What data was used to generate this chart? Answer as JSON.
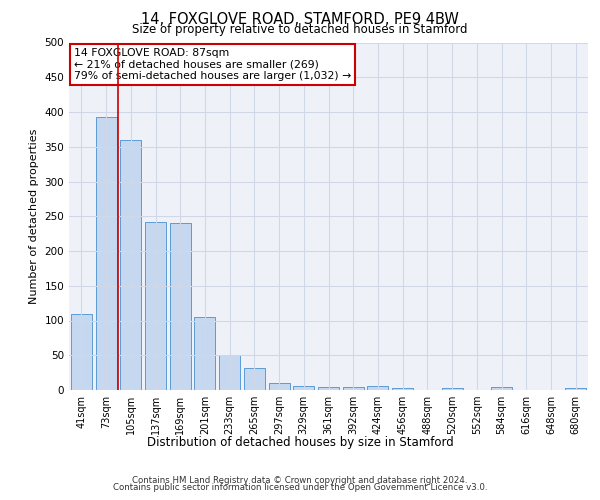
{
  "title": "14, FOXGLOVE ROAD, STAMFORD, PE9 4BW",
  "subtitle": "Size of property relative to detached houses in Stamford",
  "xlabel": "Distribution of detached houses by size in Stamford",
  "ylabel": "Number of detached properties",
  "bar_labels": [
    "41sqm",
    "73sqm",
    "105sqm",
    "137sqm",
    "169sqm",
    "201sqm",
    "233sqm",
    "265sqm",
    "297sqm",
    "329sqm",
    "361sqm",
    "392sqm",
    "424sqm",
    "456sqm",
    "488sqm",
    "520sqm",
    "552sqm",
    "584sqm",
    "616sqm",
    "648sqm",
    "680sqm"
  ],
  "bar_values": [
    110,
    393,
    360,
    242,
    241,
    105,
    50,
    31,
    10,
    6,
    4,
    4,
    6,
    3,
    0,
    3,
    0,
    5,
    0,
    0,
    3
  ],
  "bar_color": "#c5d8f0",
  "bar_edge_color": "#5b9bd5",
  "vline_x": 1.5,
  "vline_color": "#cc0000",
  "annotation_text": "14 FOXGLOVE ROAD: 87sqm\n← 21% of detached houses are smaller (269)\n79% of semi-detached houses are larger (1,032) →",
  "annotation_box_color": "#ffffff",
  "annotation_box_edge": "#cc0000",
  "ylim": [
    0,
    500
  ],
  "yticks": [
    0,
    50,
    100,
    150,
    200,
    250,
    300,
    350,
    400,
    450,
    500
  ],
  "grid_color": "#d0d8e8",
  "background_color": "#eef2f8",
  "footer_line1": "Contains HM Land Registry data © Crown copyright and database right 2024.",
  "footer_line2": "Contains public sector information licensed under the Open Government Licence v3.0."
}
